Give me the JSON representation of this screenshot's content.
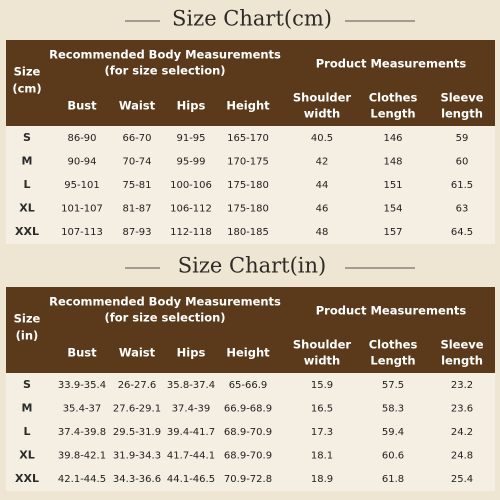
{
  "sections": [
    {
      "title": "Size Chart(cm)",
      "size_header": [
        "Size",
        "(cm)"
      ],
      "body_header": [
        "Recommended Body Measurements",
        "(for size selection)"
      ],
      "product_header": "Product Measurements",
      "columns": [
        [
          "Bust"
        ],
        [
          "Waist"
        ],
        [
          "Hips"
        ],
        [
          "Height"
        ],
        [
          "Shoulder",
          "width"
        ],
        [
          "Clothes",
          "Length"
        ],
        [
          "Sleeve",
          "length"
        ]
      ],
      "rows": [
        [
          "S",
          "86-90",
          "66-70",
          "91-95",
          "165-170",
          "40.5",
          "146",
          "59"
        ],
        [
          "M",
          "90-94",
          "70-74",
          "95-99",
          "170-175",
          "42",
          "148",
          "60"
        ],
        [
          "L",
          "95-101",
          "75-81",
          "100-106",
          "175-180",
          "44",
          "151",
          "61.5"
        ],
        [
          "XL",
          "101-107",
          "81-87",
          "106-112",
          "175-180",
          "46",
          "154",
          "63"
        ],
        [
          "XXL",
          "107-113",
          "87-93",
          "112-118",
          "180-185",
          "48",
          "157",
          "64.5"
        ]
      ]
    },
    {
      "title": "Size Chart(in)",
      "size_header": [
        "Size",
        "(in)"
      ],
      "body_header": [
        "Recommended Body Measurements",
        "(for size selection)"
      ],
      "product_header": "Product Measurements",
      "columns": [
        [
          "Bust"
        ],
        [
          "Waist"
        ],
        [
          "Hips"
        ],
        [
          "Height"
        ],
        [
          "Shoulder",
          "width"
        ],
        [
          "Clothes",
          "Length"
        ],
        [
          "Sleeve",
          "length"
        ]
      ],
      "rows": [
        [
          "S",
          "33.9-35.4",
          "26-27.6",
          "35.8-37.4",
          "65-66.9",
          "15.9",
          "57.5",
          "23.2"
        ],
        [
          "M",
          "35.4-37",
          "27.6-29.1",
          "37.4-39",
          "66.9-68.9",
          "16.5",
          "58.3",
          "23.6"
        ],
        [
          "L",
          "37.4-39.8",
          "29.5-31.9",
          "39.4-41.7",
          "68.9-70.9",
          "17.3",
          "59.4",
          "24.2"
        ],
        [
          "XL",
          "39.8-42.1",
          "31.9-34.3",
          "41.7-44.1",
          "68.9-70.9",
          "18.1",
          "60.6",
          "24.8"
        ],
        [
          "XXL",
          "42.1-44.5",
          "34.3-36.6",
          "44.1-46.5",
          "70.9-72.8",
          "18.9",
          "61.8",
          "25.4"
        ]
      ]
    }
  ]
}
